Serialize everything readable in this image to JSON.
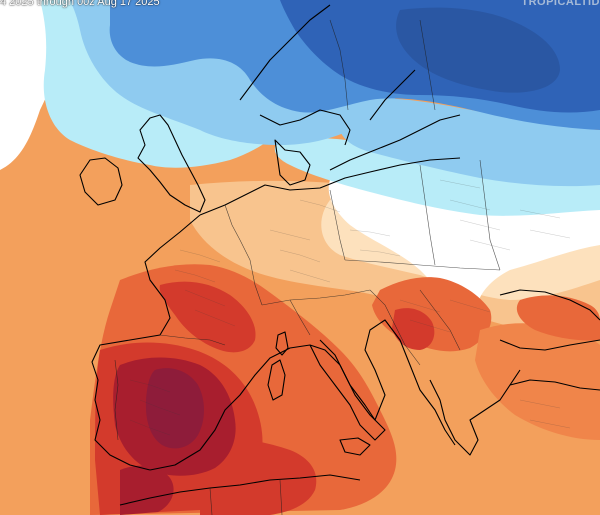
{
  "header": {
    "title": "4 2025 through 00z Aug 17 2025",
    "brand": "TROPICALTID"
  },
  "colors": {
    "deep_blue": "#2f63b7",
    "blue": "#4d8fd8",
    "light_blue": "#8fcbf0",
    "cyan": "#b8ecf8",
    "white": "#ffffff",
    "pale_orange": "#fde1bd",
    "light_orange": "#f8c48e",
    "orange": "#f3a05c",
    "red_orange": "#e8683a",
    "red": "#d33a2c",
    "dark_red": "#a81e2e",
    "maroon": "#8e1c3a",
    "border_line": "#1e1e1e",
    "coast_line": "#000000"
  },
  "map": {
    "type": "temperature anomaly map",
    "region": "Europe"
  }
}
